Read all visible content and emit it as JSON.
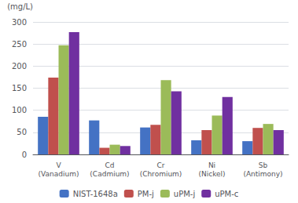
{
  "chart_data": {
    "type": "bar",
    "categories": [
      "V\n(Vanadium)",
      "Cd\n(Cadmium)",
      "Cr\n(Chromium)",
      "Ni\n(Nickel)",
      "Sb\n(Antimony)"
    ],
    "series": [
      {
        "name": "NIST-1648a",
        "color": "#4472C4",
        "values": [
          85,
          77,
          61,
          32,
          30
        ]
      },
      {
        "name": "PM-j",
        "color": "#C0504D",
        "values": [
          174,
          15,
          67,
          55,
          60
        ]
      },
      {
        "name": "uPM-j",
        "color": "#9BBB59",
        "values": [
          247,
          22,
          168,
          88,
          69
        ]
      },
      {
        "name": "uPM-c",
        "color": "#7030A0",
        "values": [
          277,
          19,
          143,
          130,
          55
        ]
      }
    ],
    "ylabel": "(mg/L)",
    "ylim": [
      0,
      300
    ],
    "yticks": [
      0,
      50,
      100,
      150,
      200,
      250,
      300
    ],
    "grid": true,
    "legend": "bottom"
  }
}
